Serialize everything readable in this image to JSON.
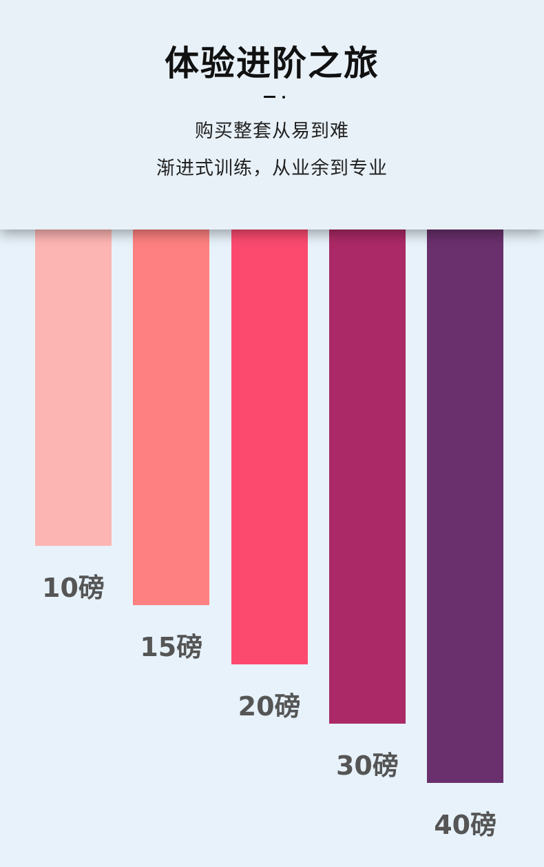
{
  "header": {
    "title": "体验进阶之旅",
    "subtitle_lines": [
      "购买整套从易到难",
      "渐进式训练，从业余到专业"
    ]
  },
  "chart_data": {
    "type": "bar",
    "orientation": "vertical-hanging",
    "categories": [
      "10磅",
      "15磅",
      "20磅",
      "30磅",
      "40磅"
    ],
    "values": [
      10,
      15,
      20,
      30,
      40
    ],
    "unit": "磅",
    "colors": [
      "#fdb5b3",
      "#ff8080",
      "#fc4a6f",
      "#ab2966",
      "#6a306d"
    ],
    "grid": false,
    "label_color": "#555555"
  }
}
